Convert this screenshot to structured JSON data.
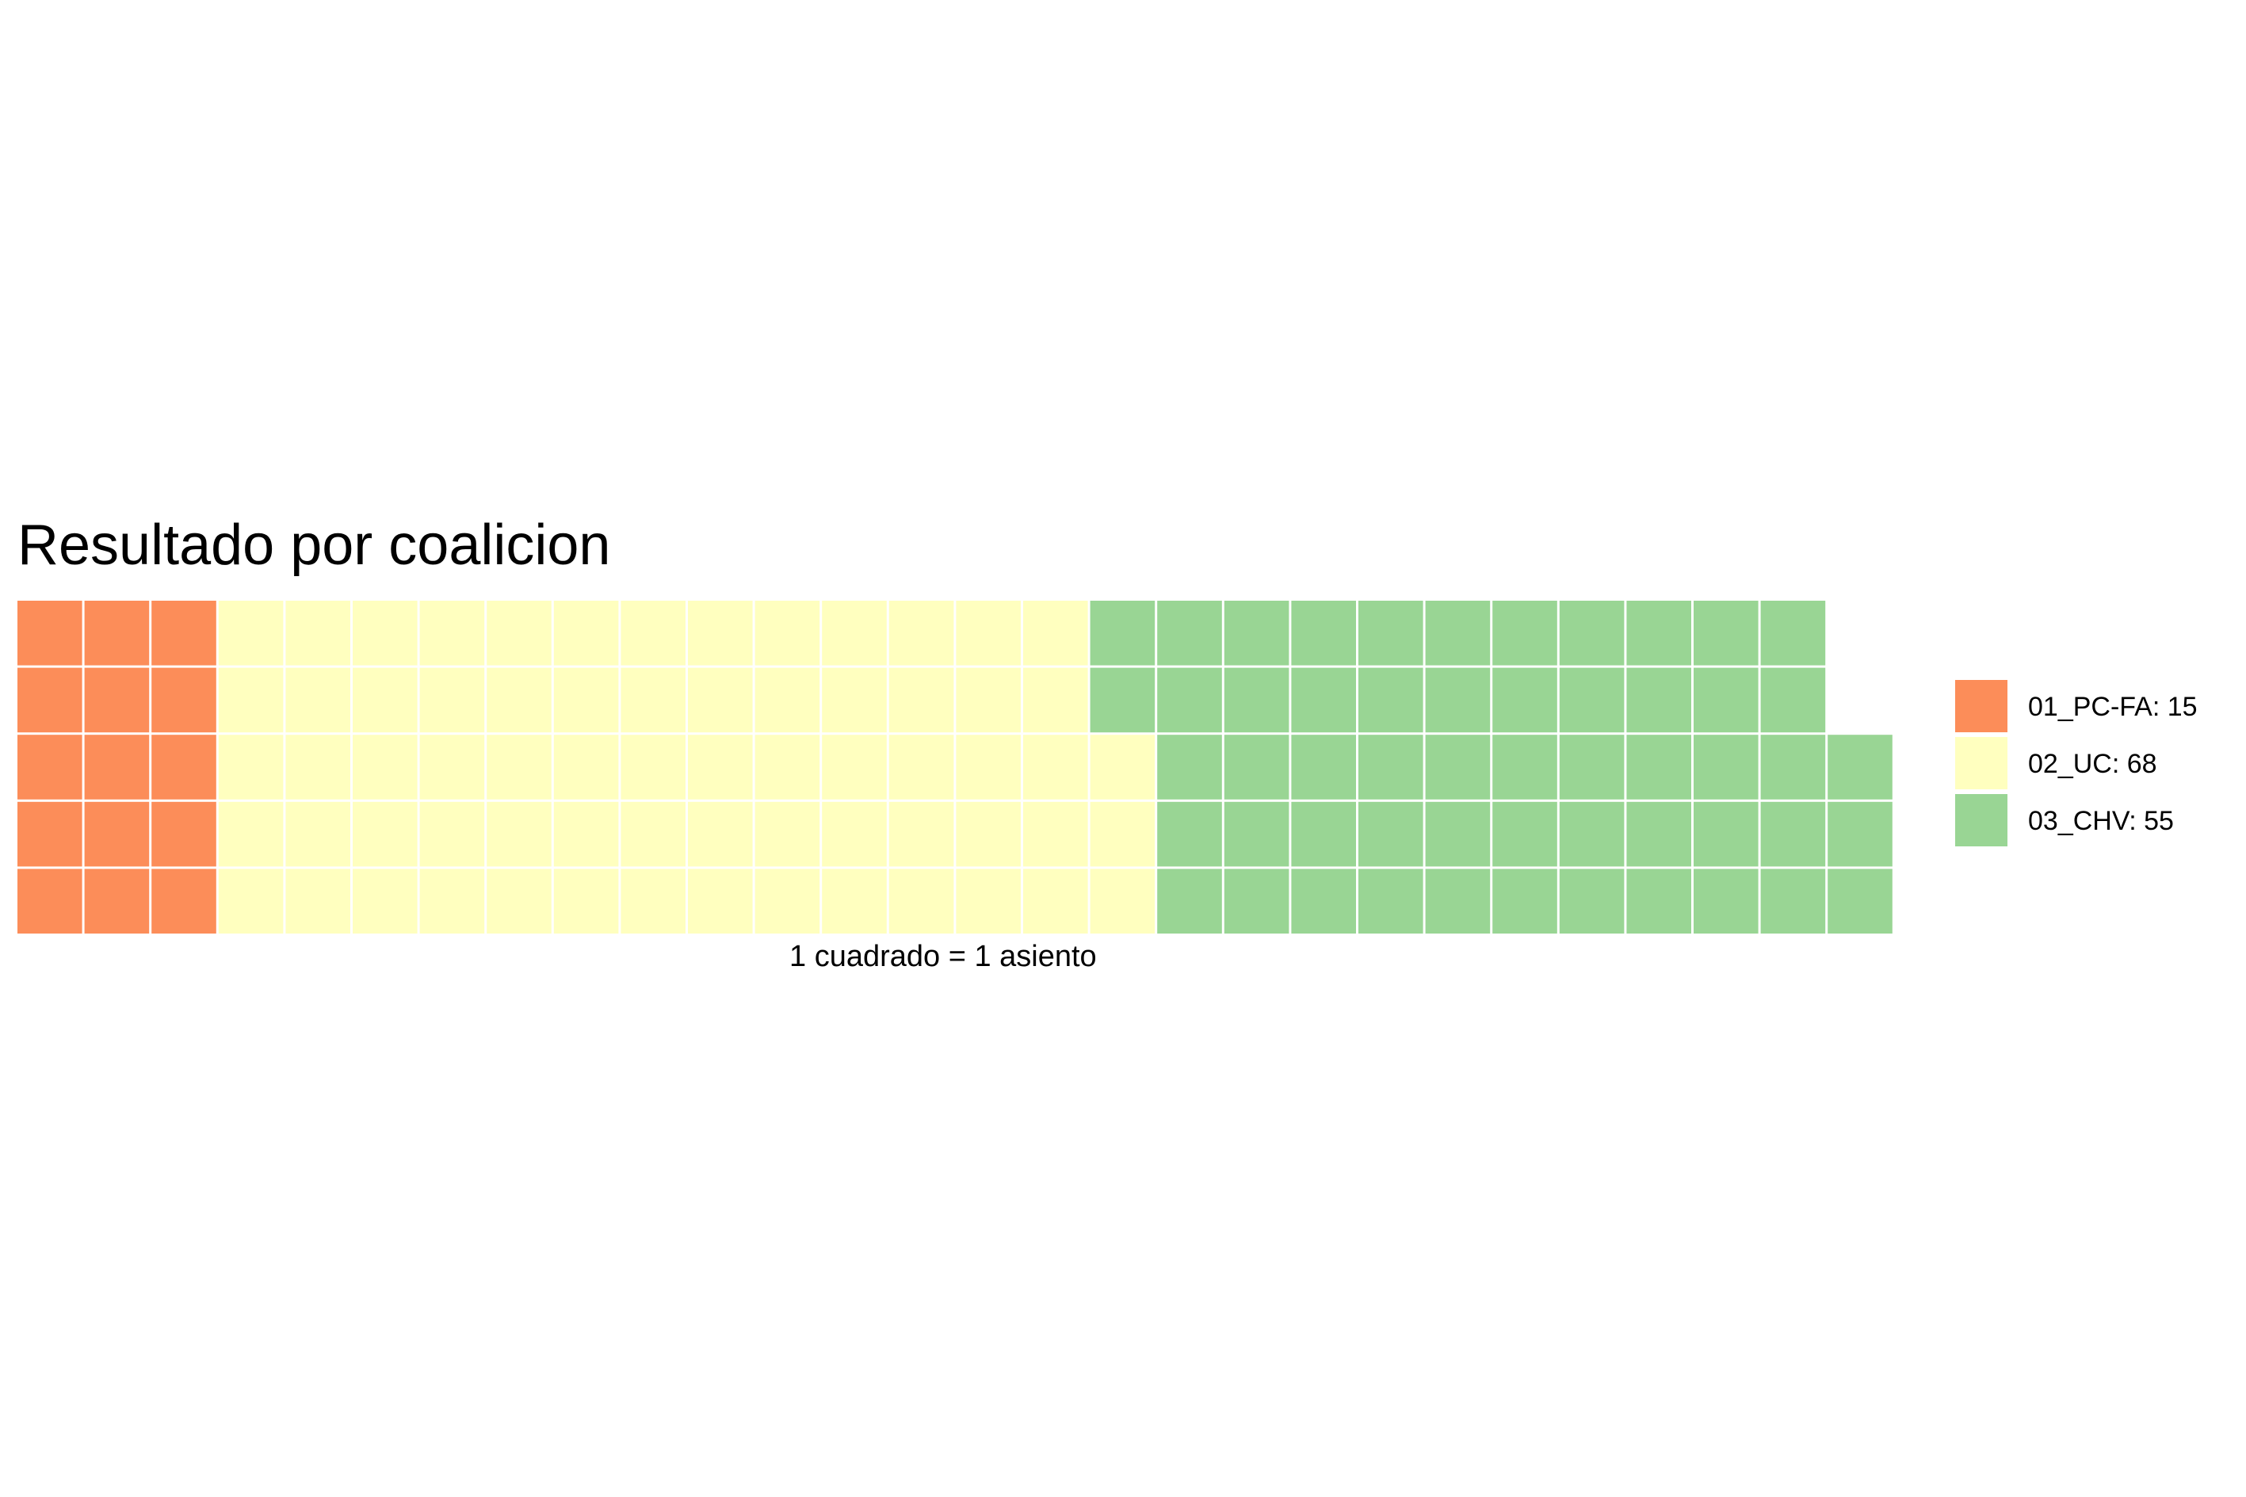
{
  "chart_data": {
    "type": "waffle",
    "title": "Resultado por coalicion",
    "caption": "1 cuadrado = 1 asiento",
    "rows": 5,
    "legend_position": "right",
    "series": [
      {
        "name": "01_PC-FA",
        "value": 15,
        "color": "#FC8D59",
        "legend_label": "01_PC-FA: 15"
      },
      {
        "name": "02_UC",
        "value": 68,
        "color": "#FFFFBF",
        "legend_label": "02_UC: 68"
      },
      {
        "name": "03_CHV",
        "value": 55,
        "color": "#99D594",
        "legend_label": "03_CHV: 55"
      }
    ]
  }
}
